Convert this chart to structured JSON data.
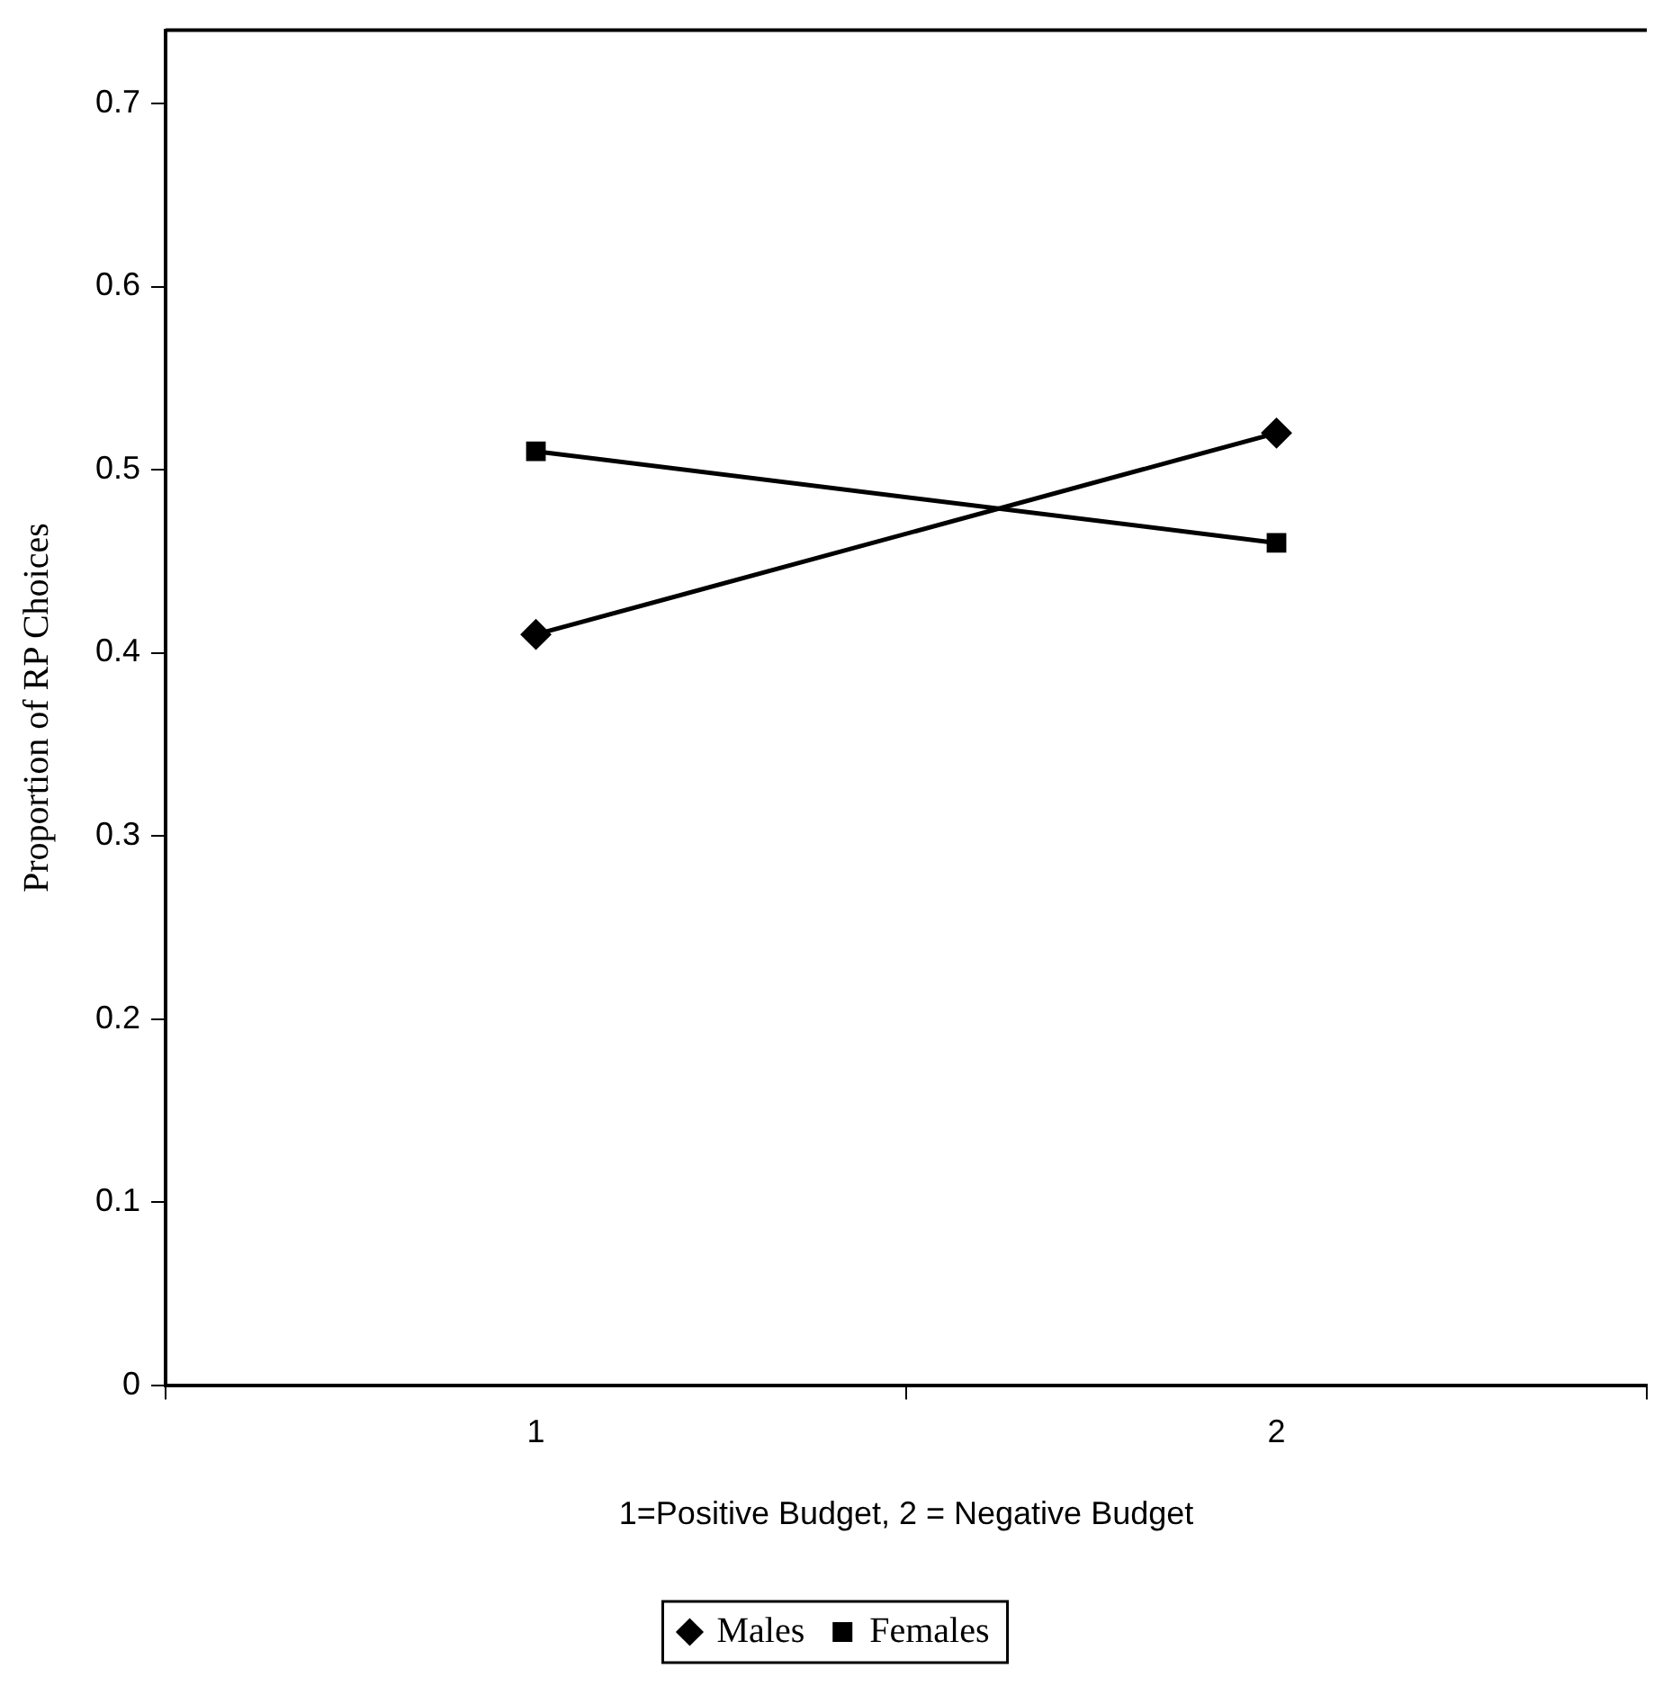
{
  "chart_data": {
    "type": "line",
    "xlabel": "1=Positive Budget, 2 = Negative Budget",
    "ylabel": "Proportion of RP Choices",
    "categories": [
      "1",
      "2"
    ],
    "series": [
      {
        "name": "Males",
        "color": "#000000",
        "marker": "diamond",
        "values": [
          0.41,
          0.52
        ]
      },
      {
        "name": "Females",
        "color": "#000000",
        "marker": "square",
        "values": [
          0.51,
          0.46
        ]
      }
    ],
    "ylim": [
      0,
      0.74
    ],
    "yticks": [
      0,
      0.1,
      0.2,
      0.3,
      0.4,
      0.5,
      0.6,
      0.7
    ],
    "grid": false,
    "legend": "bottom",
    "line_style": "solid"
  }
}
